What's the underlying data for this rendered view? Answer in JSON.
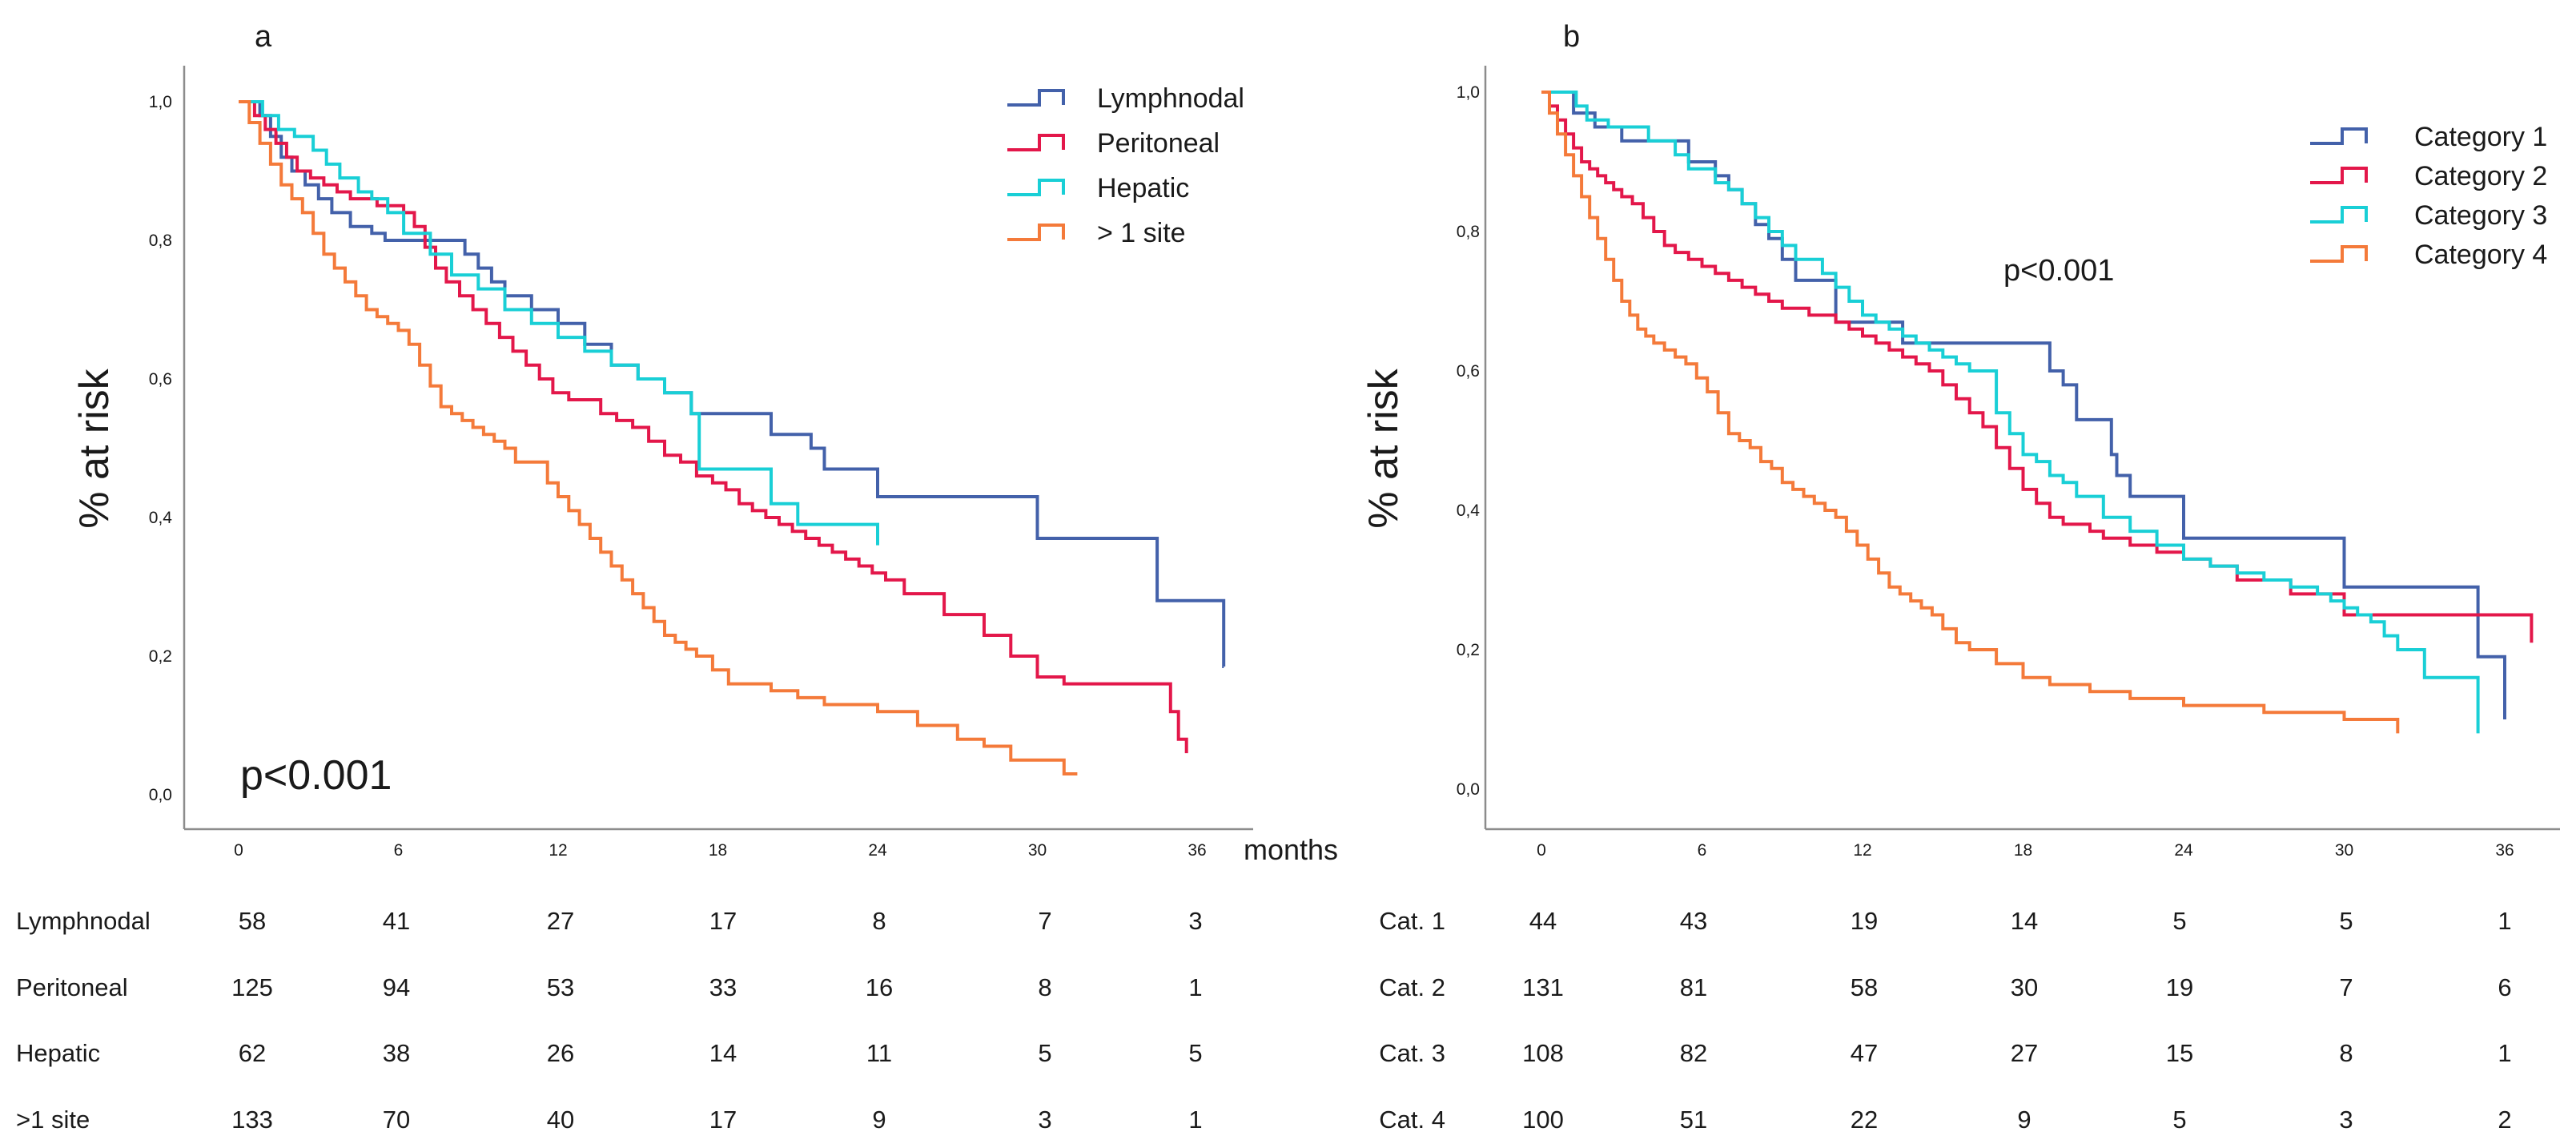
{
  "colors": {
    "c1": "#4361aa",
    "c2": "#e3174a",
    "c3": "#19cfd6",
    "c4": "#f47a3a"
  },
  "months_label": "months",
  "chart_data": [
    {
      "type": "line",
      "step": true,
      "panel_label": "a",
      "ylabel": "% at risk",
      "xlabel": "months",
      "xlim": [
        -2,
        38
      ],
      "ylim": [
        -0.05,
        1.03
      ],
      "x_ticks": [
        0,
        6,
        12,
        18,
        24,
        30,
        36
      ],
      "x_tick_labels": [
        "0",
        "6",
        "12",
        "18",
        "24",
        "30",
        "36"
      ],
      "y_ticks": [
        0,
        0.2,
        0.4,
        0.6,
        0.8,
        1.0
      ],
      "y_tick_labels": [
        "0,0",
        "0,2",
        "0,4",
        "0,6",
        "0,8",
        "1,0"
      ],
      "p_value": "p<0.001",
      "p_value_big": true,
      "series": [
        {
          "name": "Lymphnodal",
          "color_key": "c1",
          "x": [
            0,
            0.8,
            1.2,
            1.6,
            2,
            2.5,
            3,
            3.5,
            4.2,
            5,
            5.5,
            6.5,
            8.5,
            9,
            9.5,
            10,
            11,
            12,
            13,
            14,
            15,
            16,
            17,
            20,
            21.5,
            22,
            24,
            30,
            33,
            34.5,
            37
          ],
          "y": [
            1.0,
            0.98,
            0.95,
            0.92,
            0.9,
            0.88,
            0.86,
            0.84,
            0.82,
            0.81,
            0.8,
            0.8,
            0.78,
            0.76,
            0.74,
            0.72,
            0.7,
            0.68,
            0.65,
            0.62,
            0.6,
            0.58,
            0.55,
            0.52,
            0.5,
            0.47,
            0.43,
            0.37,
            0.37,
            0.28,
            0.185
          ]
        },
        {
          "name": "Peritoneal",
          "color_key": "c2",
          "x": [
            0,
            0.6,
            1.0,
            1.4,
            1.8,
            2.2,
            2.7,
            3.2,
            3.7,
            4.2,
            4.7,
            5.2,
            5.7,
            6.2,
            6.6,
            7,
            7.4,
            7.8,
            8.3,
            8.8,
            9.3,
            9.8,
            10.3,
            10.8,
            11.3,
            11.8,
            12.4,
            13.6,
            14.2,
            14.8,
            15.4,
            16,
            16.6,
            17.2,
            17.8,
            18.3,
            18.8,
            19.3,
            19.8,
            20.3,
            20.8,
            21.3,
            21.8,
            22.3,
            22.8,
            23.3,
            23.8,
            24.3,
            25,
            26.5,
            28,
            29,
            30,
            31,
            32,
            35,
            35.3,
            35.6
          ],
          "y": [
            1.0,
            0.98,
            0.96,
            0.94,
            0.92,
            0.9,
            0.89,
            0.88,
            0.87,
            0.86,
            0.86,
            0.85,
            0.85,
            0.84,
            0.82,
            0.79,
            0.76,
            0.74,
            0.72,
            0.7,
            0.68,
            0.66,
            0.64,
            0.62,
            0.6,
            0.58,
            0.57,
            0.55,
            0.54,
            0.53,
            0.51,
            0.49,
            0.48,
            0.46,
            0.45,
            0.44,
            0.42,
            0.41,
            0.4,
            0.39,
            0.38,
            0.37,
            0.36,
            0.35,
            0.34,
            0.33,
            0.32,
            0.31,
            0.29,
            0.26,
            0.23,
            0.2,
            0.17,
            0.16,
            0.16,
            0.12,
            0.08,
            0.06
          ]
        },
        {
          "name": "Hepatic",
          "color_key": "c3",
          "x": [
            0,
            0.9,
            1.5,
            2.1,
            2.8,
            3.3,
            3.8,
            4.5,
            5,
            5.6,
            6.2,
            7.2,
            8,
            9,
            10,
            11,
            12,
            13,
            14,
            15,
            16,
            17,
            17.3,
            20,
            21,
            24
          ],
          "y": [
            1.0,
            0.98,
            0.96,
            0.95,
            0.93,
            0.91,
            0.89,
            0.87,
            0.86,
            0.84,
            0.81,
            0.78,
            0.75,
            0.73,
            0.7,
            0.68,
            0.66,
            0.64,
            0.62,
            0.6,
            0.58,
            0.55,
            0.47,
            0.42,
            0.39,
            0.36
          ]
        },
        {
          "name": "> 1 site",
          "color_key": "c4",
          "x": [
            0,
            0.4,
            0.8,
            1.2,
            1.6,
            2.0,
            2.4,
            2.8,
            3.2,
            3.6,
            4.0,
            4.4,
            4.8,
            5.2,
            5.6,
            6.0,
            6.4,
            6.8,
            7.2,
            7.6,
            8.0,
            8.4,
            8.8,
            9.2,
            9.6,
            10.0,
            10.4,
            10.8,
            11.2,
            11.6,
            12.0,
            12.4,
            12.8,
            13.2,
            13.6,
            14.0,
            14.4,
            14.8,
            15.2,
            15.6,
            16.0,
            16.4,
            16.8,
            17.2,
            17.8,
            18.4,
            19.0,
            20.0,
            21.0,
            22.0,
            24.0,
            25.5,
            27.0,
            28.0,
            29.0,
            31.0,
            31.5
          ],
          "y": [
            1.0,
            0.97,
            0.94,
            0.91,
            0.88,
            0.86,
            0.84,
            0.81,
            0.78,
            0.76,
            0.74,
            0.72,
            0.7,
            0.69,
            0.68,
            0.67,
            0.65,
            0.62,
            0.59,
            0.56,
            0.55,
            0.54,
            0.53,
            0.52,
            0.51,
            0.5,
            0.48,
            0.48,
            0.48,
            0.45,
            0.43,
            0.41,
            0.39,
            0.37,
            0.35,
            0.33,
            0.31,
            0.29,
            0.27,
            0.25,
            0.23,
            0.22,
            0.21,
            0.2,
            0.18,
            0.16,
            0.16,
            0.15,
            0.14,
            0.13,
            0.12,
            0.1,
            0.08,
            0.07,
            0.05,
            0.03,
            0.03
          ]
        }
      ],
      "risk_table": {
        "labels": [
          "Lymphnodal",
          "Peritoneal",
          "Hepatic",
          ">1 site"
        ],
        "rows": [
          [
            "58",
            "41",
            "27",
            "17",
            "8",
            "7",
            "3"
          ],
          [
            "125",
            "94",
            "53",
            "33",
            "16",
            "8",
            "1"
          ],
          [
            "62",
            "38",
            "26",
            "14",
            "11",
            "5",
            "5"
          ],
          [
            "133",
            "70",
            "40",
            "17",
            "9",
            "3",
            "1"
          ]
        ]
      }
    },
    {
      "type": "line",
      "step": true,
      "panel_label": "b",
      "ylabel": "% at risk",
      "xlabel": "months",
      "xlim": [
        -2,
        38
      ],
      "ylim": [
        -0.05,
        1.03
      ],
      "x_ticks": [
        0,
        6,
        12,
        18,
        24,
        30,
        36
      ],
      "x_tick_labels": [
        "0",
        "6",
        "12",
        "18",
        "24",
        "30",
        "36"
      ],
      "y_ticks": [
        0,
        0.2,
        0.4,
        0.6,
        0.8,
        1.0
      ],
      "y_tick_labels": [
        "0,0",
        "0,2",
        "0,4",
        "0,6",
        "0,8",
        "1,0"
      ],
      "p_value": "p<0.001",
      "p_value_big": false,
      "series": [
        {
          "name": "Category 1",
          "color_key": "c1",
          "x": [
            0,
            1.2,
            2.0,
            3.0,
            5.5,
            6.5,
            7,
            7.5,
            8,
            8.5,
            9,
            9.5,
            11,
            12.5,
            13.5,
            19,
            19.5,
            20,
            21.3,
            21.5,
            22,
            24,
            30,
            33,
            35,
            36
          ],
          "y": [
            1.0,
            0.97,
            0.95,
            0.93,
            0.9,
            0.88,
            0.86,
            0.84,
            0.81,
            0.79,
            0.76,
            0.73,
            0.67,
            0.67,
            0.64,
            0.6,
            0.58,
            0.53,
            0.48,
            0.45,
            0.42,
            0.36,
            0.29,
            0.29,
            0.19,
            0.1
          ]
        },
        {
          "name": "Category 2",
          "color_key": "c2",
          "x": [
            0,
            0.3,
            0.6,
            0.9,
            1.2,
            1.5,
            1.8,
            2.1,
            2.4,
            2.7,
            3.0,
            3.4,
            3.8,
            4.2,
            4.6,
            5.0,
            5.5,
            6.0,
            6.5,
            7.0,
            7.5,
            8.0,
            8.5,
            9.0,
            9.5,
            10.0,
            10.5,
            11.0,
            11.5,
            12.0,
            12.5,
            13.0,
            13.5,
            14.0,
            14.5,
            15.0,
            15.5,
            16.0,
            16.5,
            17.0,
            17.5,
            18.0,
            18.5,
            19.0,
            19.5,
            20.0,
            20.5,
            21.0,
            22.0,
            23.0,
            24.0,
            25.0,
            26.0,
            28.0,
            30.0,
            33.0,
            37.0
          ],
          "y": [
            1.0,
            0.98,
            0.96,
            0.94,
            0.92,
            0.9,
            0.89,
            0.88,
            0.87,
            0.86,
            0.85,
            0.84,
            0.82,
            0.8,
            0.78,
            0.77,
            0.76,
            0.75,
            0.74,
            0.73,
            0.72,
            0.71,
            0.7,
            0.69,
            0.69,
            0.68,
            0.68,
            0.67,
            0.66,
            0.65,
            0.64,
            0.63,
            0.62,
            0.61,
            0.6,
            0.58,
            0.56,
            0.54,
            0.52,
            0.49,
            0.46,
            0.43,
            0.41,
            0.39,
            0.38,
            0.38,
            0.37,
            0.36,
            0.35,
            0.34,
            0.33,
            0.32,
            0.3,
            0.28,
            0.25,
            0.25,
            0.21
          ]
        },
        {
          "name": "Category 3",
          "color_key": "c3",
          "x": [
            0,
            1.3,
            1.7,
            2.5,
            4,
            5,
            5.5,
            6.5,
            7,
            7.5,
            8,
            8.5,
            9,
            9.5,
            10.5,
            11,
            11.5,
            12,
            12.5,
            13,
            13.5,
            14,
            14.5,
            15,
            15.5,
            16,
            17,
            17.5,
            18,
            18.5,
            19,
            19.5,
            20,
            21,
            22,
            23,
            24,
            25,
            26,
            27,
            28,
            29,
            29.5,
            30,
            30.5,
            31,
            31.5,
            32,
            33,
            35
          ],
          "y": [
            1.0,
            0.98,
            0.96,
            0.95,
            0.93,
            0.91,
            0.89,
            0.87,
            0.86,
            0.84,
            0.82,
            0.8,
            0.78,
            0.76,
            0.74,
            0.72,
            0.7,
            0.68,
            0.67,
            0.66,
            0.65,
            0.64,
            0.63,
            0.62,
            0.61,
            0.6,
            0.54,
            0.51,
            0.48,
            0.47,
            0.45,
            0.44,
            0.42,
            0.39,
            0.37,
            0.35,
            0.33,
            0.32,
            0.31,
            0.3,
            0.29,
            0.28,
            0.27,
            0.26,
            0.25,
            0.24,
            0.22,
            0.2,
            0.16,
            0.08
          ]
        },
        {
          "name": "Category 4",
          "color_key": "c4",
          "x": [
            0,
            0.3,
            0.6,
            0.9,
            1.2,
            1.5,
            1.8,
            2.1,
            2.4,
            2.7,
            3.0,
            3.3,
            3.6,
            3.9,
            4.2,
            4.6,
            5.0,
            5.4,
            5.8,
            6.2,
            6.6,
            7.0,
            7.4,
            7.8,
            8.2,
            8.6,
            9.0,
            9.4,
            9.8,
            10.2,
            10.6,
            11.0,
            11.4,
            11.8,
            12.2,
            12.6,
            13.0,
            13.4,
            13.8,
            14.2,
            14.6,
            15.0,
            15.5,
            16.0,
            17.0,
            18.0,
            19.0,
            20.5,
            22.0,
            24.0,
            27.0,
            30.0,
            32.0
          ],
          "y": [
            1.0,
            0.97,
            0.94,
            0.91,
            0.88,
            0.85,
            0.82,
            0.79,
            0.76,
            0.73,
            0.7,
            0.68,
            0.66,
            0.65,
            0.64,
            0.63,
            0.62,
            0.61,
            0.59,
            0.57,
            0.54,
            0.51,
            0.5,
            0.49,
            0.47,
            0.46,
            0.44,
            0.43,
            0.42,
            0.41,
            0.4,
            0.39,
            0.37,
            0.35,
            0.33,
            0.31,
            0.29,
            0.28,
            0.27,
            0.26,
            0.25,
            0.23,
            0.21,
            0.2,
            0.18,
            0.16,
            0.15,
            0.14,
            0.13,
            0.12,
            0.11,
            0.1,
            0.08
          ]
        }
      ],
      "risk_table": {
        "labels": [
          "Cat. 1",
          "Cat. 2",
          "Cat. 3",
          "Cat. 4"
        ],
        "rows": [
          [
            "44",
            "43",
            "19",
            "14",
            "5",
            "5",
            "1"
          ],
          [
            "131",
            "81",
            "58",
            "30",
            "19",
            "7",
            "6"
          ],
          [
            "108",
            "82",
            "47",
            "27",
            "15",
            "8",
            "1"
          ],
          [
            "100",
            "51",
            "22",
            "9",
            "5",
            "3",
            "2"
          ]
        ]
      }
    }
  ]
}
